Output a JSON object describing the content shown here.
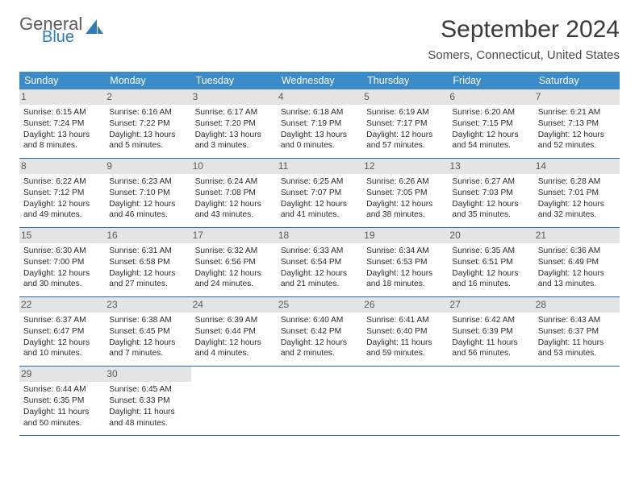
{
  "logo": {
    "general": "General",
    "blue": "Blue"
  },
  "title": "September 2024",
  "location": "Somers, Connecticut, United States",
  "colors": {
    "header_bg": "#3b8bc8",
    "header_text": "#ffffff",
    "daynum_bg": "#e4e4e4",
    "daynum_text": "#5a5a5a",
    "week_border": "#1f6aa5",
    "logo_icon": "#2f7bbf"
  },
  "day_labels": [
    "Sunday",
    "Monday",
    "Tuesday",
    "Wednesday",
    "Thursday",
    "Friday",
    "Saturday"
  ],
  "weeks": [
    [
      {
        "n": "1",
        "sr": "6:15 AM",
        "ss": "7:24 PM",
        "dl": "13 hours and 8 minutes."
      },
      {
        "n": "2",
        "sr": "6:16 AM",
        "ss": "7:22 PM",
        "dl": "13 hours and 5 minutes."
      },
      {
        "n": "3",
        "sr": "6:17 AM",
        "ss": "7:20 PM",
        "dl": "13 hours and 3 minutes."
      },
      {
        "n": "4",
        "sr": "6:18 AM",
        "ss": "7:19 PM",
        "dl": "13 hours and 0 minutes."
      },
      {
        "n": "5",
        "sr": "6:19 AM",
        "ss": "7:17 PM",
        "dl": "12 hours and 57 minutes."
      },
      {
        "n": "6",
        "sr": "6:20 AM",
        "ss": "7:15 PM",
        "dl": "12 hours and 54 minutes."
      },
      {
        "n": "7",
        "sr": "6:21 AM",
        "ss": "7:13 PM",
        "dl": "12 hours and 52 minutes."
      }
    ],
    [
      {
        "n": "8",
        "sr": "6:22 AM",
        "ss": "7:12 PM",
        "dl": "12 hours and 49 minutes."
      },
      {
        "n": "9",
        "sr": "6:23 AM",
        "ss": "7:10 PM",
        "dl": "12 hours and 46 minutes."
      },
      {
        "n": "10",
        "sr": "6:24 AM",
        "ss": "7:08 PM",
        "dl": "12 hours and 43 minutes."
      },
      {
        "n": "11",
        "sr": "6:25 AM",
        "ss": "7:07 PM",
        "dl": "12 hours and 41 minutes."
      },
      {
        "n": "12",
        "sr": "6:26 AM",
        "ss": "7:05 PM",
        "dl": "12 hours and 38 minutes."
      },
      {
        "n": "13",
        "sr": "6:27 AM",
        "ss": "7:03 PM",
        "dl": "12 hours and 35 minutes."
      },
      {
        "n": "14",
        "sr": "6:28 AM",
        "ss": "7:01 PM",
        "dl": "12 hours and 32 minutes."
      }
    ],
    [
      {
        "n": "15",
        "sr": "6:30 AM",
        "ss": "7:00 PM",
        "dl": "12 hours and 30 minutes."
      },
      {
        "n": "16",
        "sr": "6:31 AM",
        "ss": "6:58 PM",
        "dl": "12 hours and 27 minutes."
      },
      {
        "n": "17",
        "sr": "6:32 AM",
        "ss": "6:56 PM",
        "dl": "12 hours and 24 minutes."
      },
      {
        "n": "18",
        "sr": "6:33 AM",
        "ss": "6:54 PM",
        "dl": "12 hours and 21 minutes."
      },
      {
        "n": "19",
        "sr": "6:34 AM",
        "ss": "6:53 PM",
        "dl": "12 hours and 18 minutes."
      },
      {
        "n": "20",
        "sr": "6:35 AM",
        "ss": "6:51 PM",
        "dl": "12 hours and 16 minutes."
      },
      {
        "n": "21",
        "sr": "6:36 AM",
        "ss": "6:49 PM",
        "dl": "12 hours and 13 minutes."
      }
    ],
    [
      {
        "n": "22",
        "sr": "6:37 AM",
        "ss": "6:47 PM",
        "dl": "12 hours and 10 minutes."
      },
      {
        "n": "23",
        "sr": "6:38 AM",
        "ss": "6:45 PM",
        "dl": "12 hours and 7 minutes."
      },
      {
        "n": "24",
        "sr": "6:39 AM",
        "ss": "6:44 PM",
        "dl": "12 hours and 4 minutes."
      },
      {
        "n": "25",
        "sr": "6:40 AM",
        "ss": "6:42 PM",
        "dl": "12 hours and 2 minutes."
      },
      {
        "n": "26",
        "sr": "6:41 AM",
        "ss": "6:40 PM",
        "dl": "11 hours and 59 minutes."
      },
      {
        "n": "27",
        "sr": "6:42 AM",
        "ss": "6:39 PM",
        "dl": "11 hours and 56 minutes."
      },
      {
        "n": "28",
        "sr": "6:43 AM",
        "ss": "6:37 PM",
        "dl": "11 hours and 53 minutes."
      }
    ],
    [
      {
        "n": "29",
        "sr": "6:44 AM",
        "ss": "6:35 PM",
        "dl": "11 hours and 50 minutes."
      },
      {
        "n": "30",
        "sr": "6:45 AM",
        "ss": "6:33 PM",
        "dl": "11 hours and 48 minutes."
      },
      null,
      null,
      null,
      null,
      null
    ]
  ],
  "labels": {
    "sunrise": "Sunrise:",
    "sunset": "Sunset:",
    "daylight": "Daylight:"
  }
}
